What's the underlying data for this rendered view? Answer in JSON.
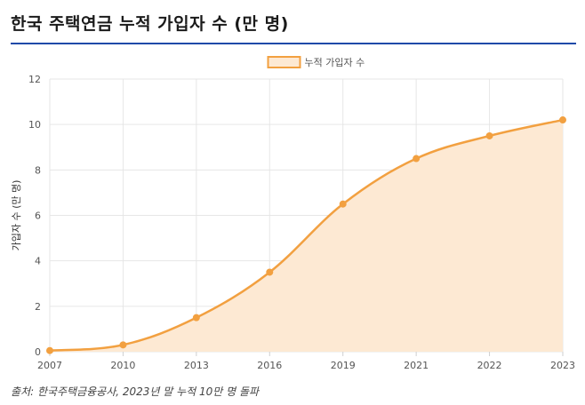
{
  "page": {
    "title": "한국 주택연금 누적 가입자 수 (만 명)",
    "source": "출처: 한국주택금융공사, 2023년 말 누적 10만 명 돌파"
  },
  "chart_data": {
    "type": "area",
    "title": "한국 주택연금 누적 가입자 수 (만 명)",
    "categories": [
      "2007",
      "2010",
      "2013",
      "2016",
      "2019",
      "2021",
      "2022",
      "2023"
    ],
    "series": [
      {
        "name": "누적 가입자 수",
        "values": [
          0.05,
          0.3,
          1.5,
          3.5,
          6.5,
          8.5,
          9.5,
          10.2
        ]
      }
    ],
    "xlabel": "",
    "ylabel": "가입자 수 (만 명)",
    "ylim": [
      0,
      12
    ],
    "yticks": [
      "0",
      "2",
      "4",
      "6",
      "8",
      "10",
      "12"
    ],
    "grid": true,
    "legend": "top-center",
    "colors": {
      "line": "#f2a040",
      "fill": "#fde9d3",
      "grid": "#e6e6e6",
      "rule": "#1f4aa8"
    }
  }
}
